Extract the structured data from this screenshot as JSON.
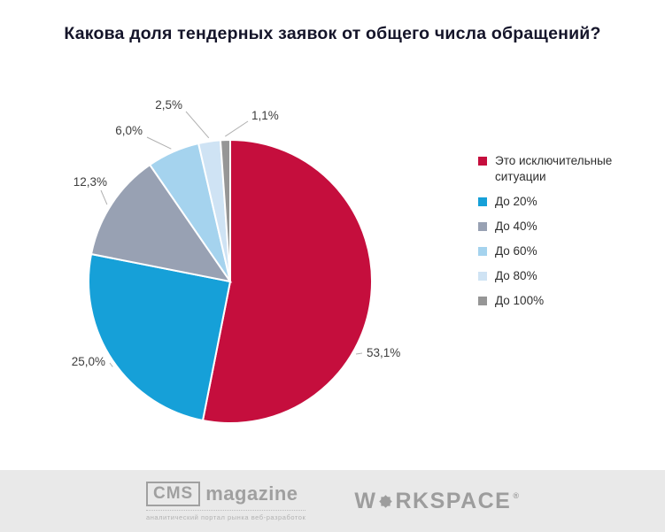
{
  "title": "Какова доля тендерных заявок от общего числа обращений?",
  "chart_data": {
    "type": "pie",
    "title": "Какова доля тендерных заявок от общего числа обращений?",
    "labels": [
      "Это исключительные ситуации",
      "До 20%",
      "До 40%",
      "До 60%",
      "До 80%",
      "До 100%"
    ],
    "values": [
      53.1,
      25.0,
      12.3,
      6.0,
      2.5,
      1.1
    ],
    "value_labels": [
      "53,1%",
      "25,0%",
      "12,3%",
      "6,0%",
      "2,5%",
      "1,1%"
    ],
    "colors": [
      "#c50e3d",
      "#16a0d8",
      "#98a1b3",
      "#a5d3ee",
      "#cfe3f4",
      "#969696"
    ],
    "unit": "%",
    "start_angle_deg": 0,
    "direction": "clockwise",
    "legend_position": "right"
  },
  "legend": {
    "items": [
      {
        "label": "Это исключительные ситуации",
        "color": "#c50e3d"
      },
      {
        "label": "До 20%",
        "color": "#16a0d8"
      },
      {
        "label": "До 40%",
        "color": "#98a1b3"
      },
      {
        "label": "До 60%",
        "color": "#a5d3ee"
      },
      {
        "label": "До 80%",
        "color": "#cfe3f4"
      },
      {
        "label": "До 100%",
        "color": "#969696"
      }
    ]
  },
  "footer": {
    "cms": {
      "box": "CMS",
      "name": "magazine",
      "tagline": "аналитический портал рынка веб-разработок"
    },
    "workspace": {
      "pre": "W",
      "post": "RKSPACE",
      "reg": "®"
    }
  }
}
